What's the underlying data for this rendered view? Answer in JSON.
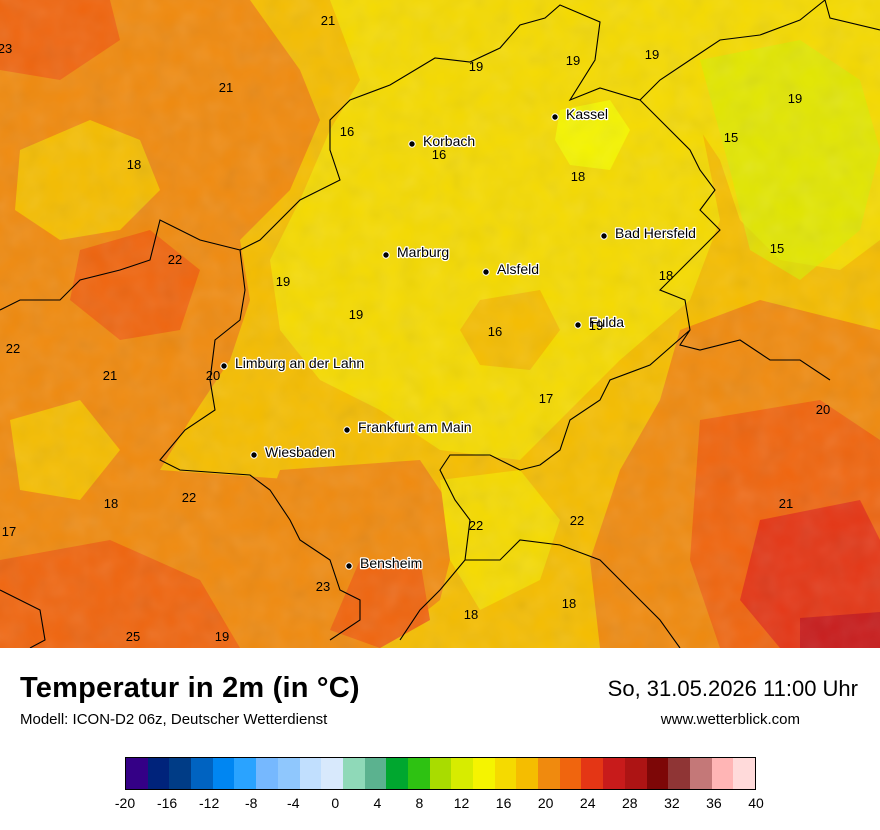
{
  "title": "Temperatur in 2m (in °C)",
  "model": "Modell: ICON-D2 06z, Deutscher Wetterdienst",
  "datetime": "So, 31.05.2026 11:00 Uhr",
  "website": "www.wetterblick.com",
  "cities": [
    {
      "name": "Kassel"
    },
    {
      "name": "Korbach"
    },
    {
      "name": "Bad Hersfeld"
    },
    {
      "name": "Marburg"
    },
    {
      "name": "Alsfeld"
    },
    {
      "name": "Fulda"
    },
    {
      "name": "Limburg an der Lahn"
    },
    {
      "name": "Frankfurt am Main"
    },
    {
      "name": "Wiesbaden"
    },
    {
      "name": "Bensheim"
    }
  ],
  "temperature_labels": [
    "23",
    "21",
    "21",
    "19",
    "19",
    "19",
    "16",
    "16",
    "18",
    "19",
    "18",
    "15",
    "22",
    "19",
    "18",
    "15",
    "19",
    "16",
    "19",
    "22",
    "21",
    "20",
    "17",
    "20",
    "18",
    "22",
    "21",
    "22",
    "22",
    "17",
    "23",
    "18",
    "25",
    "19",
    "18"
  ],
  "legend": {
    "colors": [
      "#340086",
      "#00237b",
      "#003c86",
      "#0063c1",
      "#0086f2",
      "#2aa3ff",
      "#76b8fe",
      "#8fc7fd",
      "#c1dffe",
      "#d8e9fc",
      "#8fd9b8",
      "#5bb28f",
      "#00a72f",
      "#2ec212",
      "#a9dc00",
      "#d7ec00",
      "#f5f400",
      "#f5da00",
      "#f5bd00",
      "#f08a0e",
      "#f0650e",
      "#e43615",
      "#c81b1b",
      "#ad1414",
      "#7d0707",
      "#8f3535",
      "#c47878",
      "#ffb5b5",
      "#ffdada"
    ],
    "tick_labels": [
      "-20",
      "-16",
      "-12",
      "-8",
      "-4",
      "0",
      "4",
      "8",
      "12",
      "16",
      "20",
      "24",
      "28",
      "32",
      "36",
      "40"
    ]
  }
}
